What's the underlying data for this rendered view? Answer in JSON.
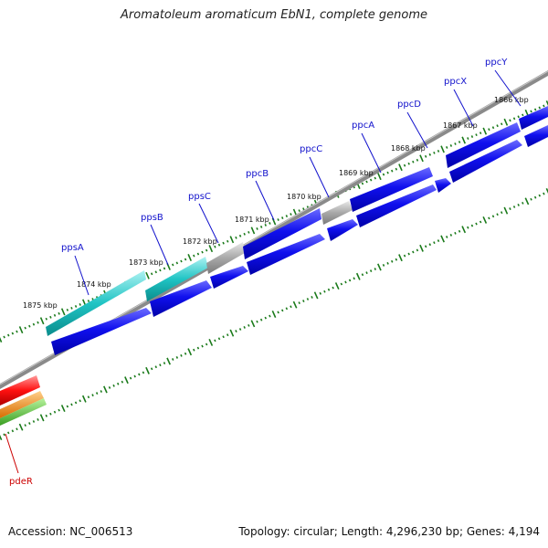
{
  "title": "Aromatoleum aromaticum EbN1, complete genome",
  "footer": {
    "accession_label": "Accession:",
    "accession": "NC_006513",
    "topology_text": "Topology: circular; Length: 4,296,230 bp; Genes: 4,194"
  },
  "scale": {
    "unit": "kbp",
    "ticks": [
      "1875 kbp",
      "1874 kbp",
      "1873 kbp",
      "1872 kbp",
      "1871 kbp",
      "1870 kbp",
      "1869 kbp",
      "1868 kbp",
      "1867 kbp",
      "1866 kbp"
    ]
  },
  "genes": [
    {
      "name": "ppsA",
      "color": "#1111cc"
    },
    {
      "name": "ppsB",
      "color": "#1111cc"
    },
    {
      "name": "ppsC",
      "color": "#1111cc"
    },
    {
      "name": "ppcB",
      "color": "#1111cc"
    },
    {
      "name": "ppcC",
      "color": "#1111cc"
    },
    {
      "name": "ppcA",
      "color": "#1111cc"
    },
    {
      "name": "ppcD",
      "color": "#1111cc"
    },
    {
      "name": "ppcX",
      "color": "#1111cc"
    },
    {
      "name": "ppcY",
      "color": "#1111cc"
    },
    {
      "name": "pdeR",
      "color": "#cc0000"
    }
  ],
  "colors": {
    "cds": "#0a0ae6",
    "cyan": "#1ec8c8",
    "grey": "#a0a0a0",
    "backbone": "#777777",
    "tick": "#1a7a1a",
    "red": "#ff1a1a",
    "orange": "#f08c1a",
    "green": "#5ac83c"
  }
}
